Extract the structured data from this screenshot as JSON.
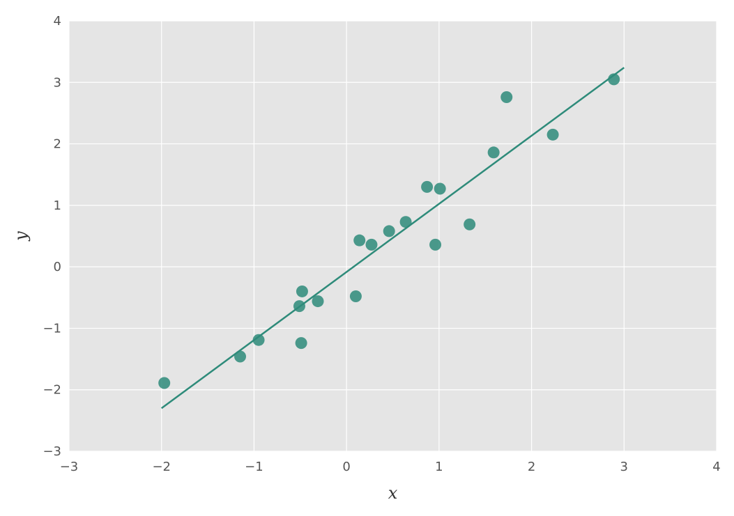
{
  "chart_data": {
    "type": "scatter",
    "title": "",
    "xlabel": "x",
    "ylabel": "y",
    "xlim": [
      -3,
      4
    ],
    "ylim": [
      -3,
      4
    ],
    "x_ticks": [
      -3,
      -2,
      -1,
      0,
      1,
      2,
      3,
      4
    ],
    "y_ticks": [
      -3,
      -2,
      -1,
      0,
      1,
      2,
      3,
      4
    ],
    "x_tick_labels": [
      "−3",
      "−2",
      "−1",
      "0",
      "1",
      "2",
      "3",
      "4"
    ],
    "y_tick_labels": [
      "−3",
      "−2",
      "−1",
      "0",
      "1",
      "2",
      "3",
      "4"
    ],
    "grid": true,
    "colors": {
      "plot_background": "#e5e5e5",
      "grid": "#ffffff",
      "series": "#2e8b7a"
    },
    "series": [
      {
        "type": "scatter",
        "points": [
          [
            -1.97,
            -1.89
          ],
          [
            -1.15,
            -1.46
          ],
          [
            -0.95,
            -1.19
          ],
          [
            -0.51,
            -0.64
          ],
          [
            -0.49,
            -1.24
          ],
          [
            -0.48,
            -0.4
          ],
          [
            -0.31,
            -0.56
          ],
          [
            0.1,
            -0.48
          ],
          [
            0.14,
            0.43
          ],
          [
            0.27,
            0.36
          ],
          [
            0.46,
            0.58
          ],
          [
            0.64,
            0.73
          ],
          [
            0.87,
            1.3
          ],
          [
            0.96,
            0.36
          ],
          [
            1.01,
            1.27
          ],
          [
            1.33,
            0.69
          ],
          [
            1.59,
            1.86
          ],
          [
            1.73,
            2.76
          ],
          [
            2.23,
            2.15
          ],
          [
            2.89,
            3.05
          ]
        ]
      },
      {
        "type": "line",
        "points": [
          [
            -2.0,
            -2.3
          ],
          [
            3.0,
            3.24
          ]
        ]
      }
    ]
  }
}
